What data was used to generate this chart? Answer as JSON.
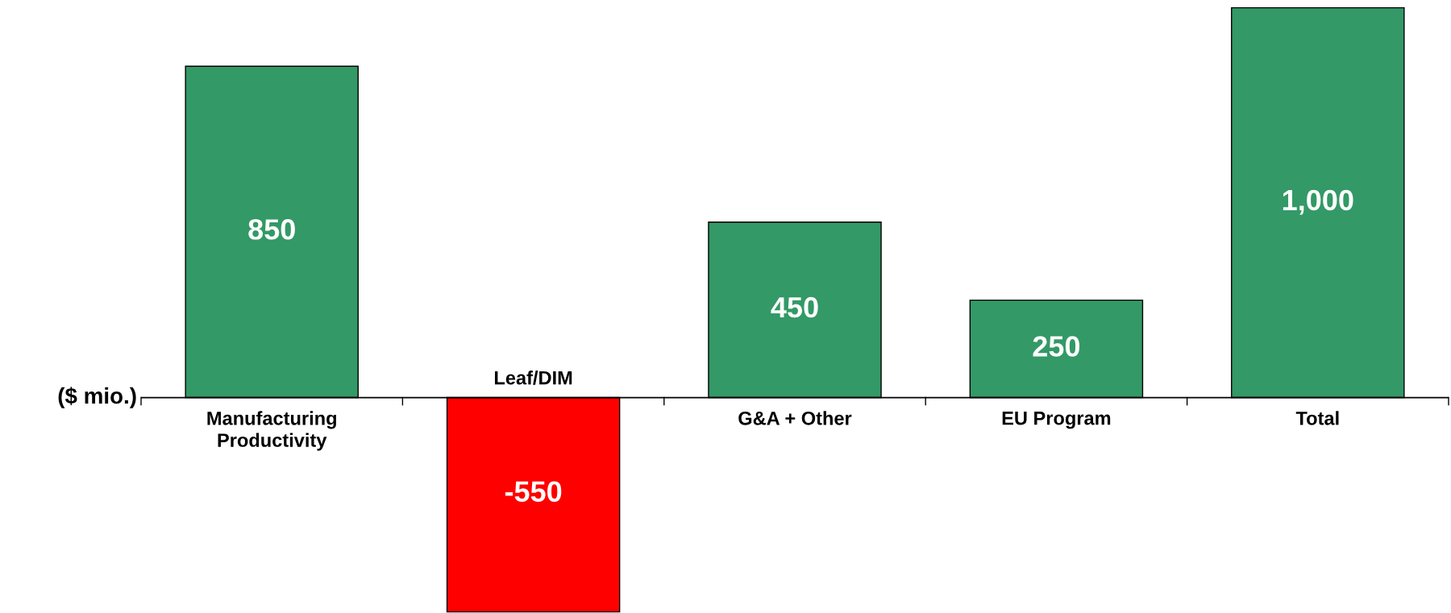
{
  "chart_data": {
    "type": "bar",
    "ylabel": "($ mio.)",
    "categories": [
      "Manufacturing\nProductivity",
      "Leaf/DIM",
      "G&A + Other",
      "EU Program",
      "Total"
    ],
    "values": [
      850,
      -550,
      450,
      250,
      1000
    ],
    "colors": [
      "#339966",
      "#ff0000",
      "#339966",
      "#339966",
      "#339966"
    ],
    "value_labels": [
      "850",
      "-550",
      "450",
      "250",
      "1,000"
    ]
  }
}
